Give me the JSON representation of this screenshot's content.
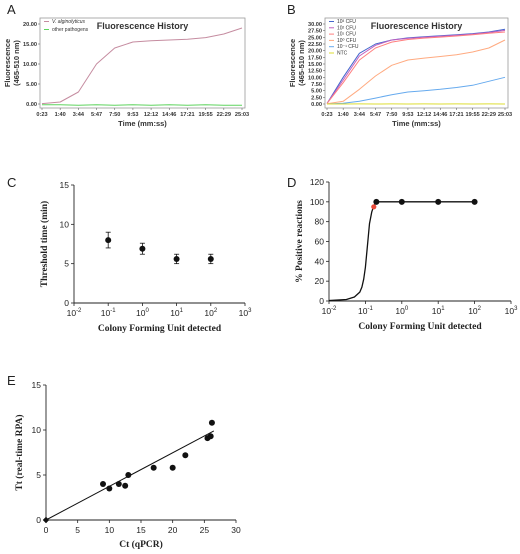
{
  "chart_data": [
    {
      "panel": "A",
      "type": "line",
      "title": "Fluorescence History",
      "xlabel": "Time (mm:ss)",
      "ylabel": "Fluorescence (465-510 nm)",
      "ylim": [
        0,
        20
      ],
      "yticks": [
        "0.00",
        "5.00",
        "10.00",
        "15.00",
        "20.00"
      ],
      "categories": [
        "0:23",
        "1:40",
        "3:44",
        "5:47",
        "7:50",
        "9:53",
        "12:12",
        "14:46",
        "17:21",
        "19:55",
        "22:29",
        "25:03"
      ],
      "legend": [
        "V. alginolyticus",
        "other pathogens"
      ],
      "colors": {
        "V. alginolyticus": "#c58ca0",
        "other pathogens": "#5ed35e"
      },
      "series": [
        {
          "name": "V. alginolyticus",
          "color": "#c58ca0",
          "values": [
            0.1,
            0.5,
            3.0,
            10.0,
            14.0,
            15.5,
            15.8,
            16.0,
            16.2,
            16.6,
            17.5,
            19.0
          ]
        },
        {
          "name": "other pathogens",
          "color": "#5ed35e",
          "values": [
            -0.2,
            -0.2,
            -0.3,
            -0.2,
            -0.3,
            -0.2,
            -0.3,
            -0.2,
            -0.3,
            -0.2,
            -0.3,
            -0.3
          ]
        }
      ]
    },
    {
      "panel": "B",
      "type": "line",
      "title": "Fluorescence History",
      "xlabel": "Time (mm:ss)",
      "ylabel": "Fluorescence (465-510 nm)",
      "ylim": [
        0,
        30
      ],
      "yticks": [
        "0.00",
        "2.50",
        "5.00",
        "7.50",
        "10.00",
        "12.50",
        "15.00",
        "17.50",
        "20.00",
        "22.50",
        "25.00",
        "27.50",
        "30.00"
      ],
      "categories": [
        "0:23",
        "1:40",
        "3:44",
        "5:47",
        "7:50",
        "9:53",
        "12:12",
        "14:46",
        "17:21",
        "19:55",
        "22:29",
        "25:03"
      ],
      "legend": [
        "10³ CFU",
        "10² CFU",
        "10¹ CFU",
        "10⁰ CFU",
        "10⁻¹ CFU",
        "NTC"
      ],
      "series": [
        {
          "name": "10³ CFU",
          "color": "#4466cc",
          "values": [
            0.2,
            10.0,
            19.0,
            22.5,
            24.0,
            24.8,
            25.2,
            25.6,
            26.0,
            26.4,
            27.0,
            28.0
          ]
        },
        {
          "name": "10² CFU",
          "color": "#c060c0",
          "values": [
            0.2,
            9.0,
            18.0,
            22.0,
            24.0,
            24.6,
            25.0,
            25.4,
            25.8,
            26.2,
            26.8,
            27.6
          ]
        },
        {
          "name": "10¹ CFU",
          "color": "#ff7f7f",
          "values": [
            0.2,
            8.0,
            16.5,
            21.0,
            23.2,
            24.2,
            24.7,
            25.1,
            25.5,
            26.0,
            26.5,
            27.0
          ]
        },
        {
          "name": "10⁰ CFU",
          "color": "#ffaa80",
          "values": [
            0.1,
            1.0,
            5.5,
            10.5,
            14.5,
            16.5,
            17.2,
            17.8,
            18.5,
            19.5,
            21.0,
            24.0
          ]
        },
        {
          "name": "10⁻¹ CFU",
          "color": "#66aaee",
          "values": [
            0.0,
            0.3,
            1.0,
            2.2,
            3.5,
            4.5,
            5.0,
            5.5,
            6.2,
            7.0,
            8.5,
            10.0
          ]
        },
        {
          "name": "NTC",
          "color": "#dddd33",
          "values": [
            0.0,
            0.0,
            0.05,
            0.0,
            0.05,
            0.0,
            0.05,
            0.0,
            0.05,
            0.0,
            0.05,
            0.0
          ]
        }
      ]
    },
    {
      "panel": "C",
      "type": "scatter",
      "xlabel": "Colony Forming Unit detected",
      "ylabel": "Threshold time (min)",
      "xscale": "log",
      "xlim": [
        0.01,
        1000
      ],
      "ylim": [
        0,
        15
      ],
      "yticks": [
        "0",
        "5",
        "10",
        "15"
      ],
      "xtick_exponents": [
        "-2",
        "-1",
        "0",
        "1",
        "2",
        "3"
      ],
      "points": [
        {
          "x": 0.1,
          "y": 8.0,
          "err": 1.0
        },
        {
          "x": 1,
          "y": 6.9,
          "err": 0.7
        },
        {
          "x": 10,
          "y": 5.6,
          "err": 0.6
        },
        {
          "x": 100,
          "y": 5.6,
          "err": 0.6
        }
      ]
    },
    {
      "panel": "D",
      "type": "scatter",
      "xlabel": "Colony Forming Unit detected",
      "ylabel": "% Positive reactions",
      "xscale": "log",
      "xlim": [
        0.01,
        1000
      ],
      "ylim": [
        0,
        120
      ],
      "yticks": [
        "0",
        "20",
        "40",
        "60",
        "80",
        "100",
        "120"
      ],
      "xtick_exponents": [
        "-2",
        "-1",
        "0",
        "1",
        "2",
        "3"
      ],
      "points": [
        {
          "x": 0.2,
          "y": 100
        },
        {
          "x": 1,
          "y": 100
        },
        {
          "x": 10,
          "y": 100
        },
        {
          "x": 100,
          "y": 100
        }
      ],
      "highlight_point": {
        "x": 0.17,
        "y": 95
      },
      "fit_curve": {
        "x": [
          0.01,
          0.03,
          0.05,
          0.07,
          0.08,
          0.09,
          0.1,
          0.11,
          0.12,
          0.13,
          0.15,
          0.17,
          0.2,
          1,
          100
        ],
        "y": [
          0.5,
          1.5,
          4,
          9,
          14,
          22,
          34,
          50,
          65,
          78,
          90,
          96,
          100,
          100,
          100
        ]
      }
    },
    {
      "panel": "E",
      "type": "scatter",
      "xlabel": "Ct (qPCR)",
      "ylabel": "Tt (real-time RPA)",
      "xlim": [
        0,
        30
      ],
      "ylim": [
        0,
        15
      ],
      "xticks": [
        "0",
        "5",
        "10",
        "15",
        "20",
        "25",
        "30"
      ],
      "yticks": [
        "0",
        "5",
        "10",
        "15"
      ],
      "points": [
        {
          "x": 0,
          "y": 0
        },
        {
          "x": 9,
          "y": 4.0
        },
        {
          "x": 10,
          "y": 3.5
        },
        {
          "x": 11.5,
          "y": 4.0
        },
        {
          "x": 12.5,
          "y": 3.8
        },
        {
          "x": 13,
          "y": 5.0
        },
        {
          "x": 17,
          "y": 5.8
        },
        {
          "x": 20,
          "y": 5.8
        },
        {
          "x": 22,
          "y": 7.2
        },
        {
          "x": 25.5,
          "y": 9.1
        },
        {
          "x": 26,
          "y": 9.3
        },
        {
          "x": 26.2,
          "y": 10.8
        }
      ],
      "fit_line": {
        "x": [
          0,
          26.5
        ],
        "y": [
          0,
          9.9
        ]
      }
    }
  ]
}
